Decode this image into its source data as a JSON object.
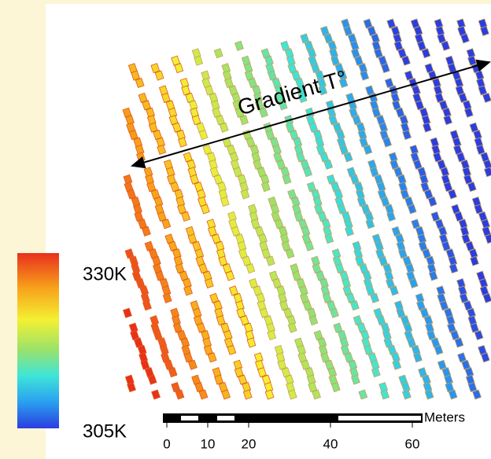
{
  "annotation": "Gradient T°",
  "legend": {
    "max_label": "330K",
    "min_label": "305K"
  },
  "scale_bar": {
    "unit": "Meters",
    "ticks": [
      0,
      10,
      20,
      40,
      60
    ]
  }
}
